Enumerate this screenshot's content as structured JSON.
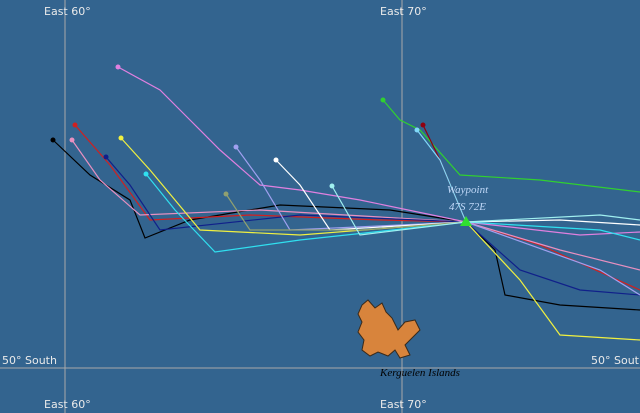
{
  "grid": {
    "meridians": [
      {
        "label": "East 60°"
      },
      {
        "label": "East 70°"
      }
    ],
    "parallel": {
      "label": "50° South"
    }
  },
  "waypoint": {
    "label": "Waypoint",
    "position": "47S 72E"
  },
  "island": {
    "label": "Kerguelen Islands"
  }
}
